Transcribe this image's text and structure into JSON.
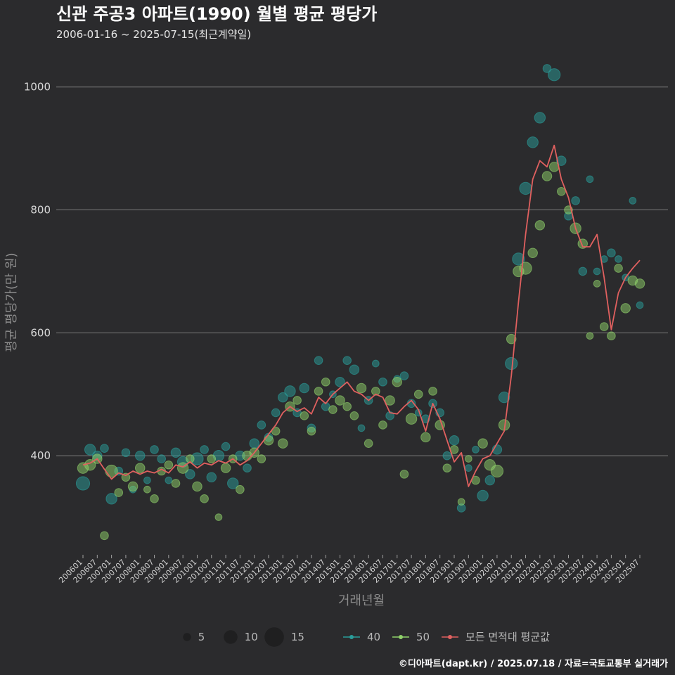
{
  "chart_data": {
    "type": "scatter",
    "title": "신관 주공3 아파트(1990) 월별 평균 평당가",
    "subtitle": "2006-01-16 ~ 2025-07-15(최근계약일)",
    "xlabel": "거래년월",
    "ylabel": "평균 평당가(만 원)",
    "caption": "©디아파트(dapt.kr) / 2025.07.18 / 자료=국토교통부 실거래가",
    "ylim": [
      240,
      1050
    ],
    "yticks": [
      400,
      600,
      800,
      1000
    ],
    "ytick_labels": [
      "400",
      "600",
      "800",
      "1000"
    ],
    "x_tick_labels": [
      "200601",
      "200607",
      "200701",
      "200707",
      "200801",
      "200807",
      "200901",
      "200907",
      "201001",
      "201007",
      "201101",
      "201107",
      "201201",
      "201207",
      "201301",
      "201307",
      "201401",
      "201407",
      "201501",
      "201507",
      "201601",
      "201607",
      "201701",
      "201707",
      "201801",
      "201807",
      "201901",
      "201907",
      "202001",
      "202007",
      "202101",
      "202107",
      "202201",
      "202207",
      "202301",
      "202307",
      "202401",
      "202407",
      "202501",
      "202507"
    ],
    "grid": "horizontal",
    "legend_position": "bottom",
    "legend": {
      "size_items": [
        {
          "label": "5",
          "value": 5
        },
        {
          "label": "10",
          "value": 10
        },
        {
          "label": "15",
          "value": 15
        }
      ],
      "color_items": [
        {
          "label": "40",
          "color": "#2a9d9a"
        },
        {
          "label": "50",
          "color": "#8fd16a"
        },
        {
          "label": "모든 면적대 평균값",
          "color": "#e0605f"
        }
      ]
    },
    "average_line": {
      "name": "모든 면적대 평균값",
      "color": "#e0605f",
      "points": [
        [
          "2006-01",
          385
        ],
        [
          "2006-04",
          388
        ],
        [
          "2006-07",
          395
        ],
        [
          "2006-10",
          378
        ],
        [
          "2007-01",
          362
        ],
        [
          "2007-04",
          372
        ],
        [
          "2007-07",
          368
        ],
        [
          "2007-10",
          375
        ],
        [
          "2008-01",
          370
        ],
        [
          "2008-04",
          375
        ],
        [
          "2008-07",
          372
        ],
        [
          "2008-10",
          378
        ],
        [
          "2009-01",
          372
        ],
        [
          "2009-04",
          385
        ],
        [
          "2009-07",
          382
        ],
        [
          "2009-10",
          390
        ],
        [
          "2010-01",
          380
        ],
        [
          "2010-04",
          388
        ],
        [
          "2010-07",
          385
        ],
        [
          "2010-10",
          392
        ],
        [
          "2011-01",
          388
        ],
        [
          "2011-04",
          395
        ],
        [
          "2011-07",
          385
        ],
        [
          "2011-10",
          392
        ],
        [
          "2012-01",
          405
        ],
        [
          "2012-04",
          420
        ],
        [
          "2012-07",
          435
        ],
        [
          "2012-10",
          450
        ],
        [
          "2013-01",
          470
        ],
        [
          "2013-04",
          480
        ],
        [
          "2013-07",
          472
        ],
        [
          "2013-10",
          478
        ],
        [
          "2014-01",
          468
        ],
        [
          "2014-04",
          495
        ],
        [
          "2014-07",
          485
        ],
        [
          "2014-10",
          500
        ],
        [
          "2015-01",
          510
        ],
        [
          "2015-04",
          520
        ],
        [
          "2015-07",
          505
        ],
        [
          "2015-10",
          500
        ],
        [
          "2016-01",
          490
        ],
        [
          "2016-04",
          500
        ],
        [
          "2016-07",
          495
        ],
        [
          "2016-10",
          470
        ],
        [
          "2017-01",
          468
        ],
        [
          "2017-04",
          480
        ],
        [
          "2017-07",
          490
        ],
        [
          "2017-10",
          475
        ],
        [
          "2018-01",
          440
        ],
        [
          "2018-04",
          485
        ],
        [
          "2018-07",
          460
        ],
        [
          "2018-10",
          425
        ],
        [
          "2019-01",
          390
        ],
        [
          "2019-04",
          405
        ],
        [
          "2019-07",
          350
        ],
        [
          "2019-10",
          375
        ],
        [
          "2020-01",
          395
        ],
        [
          "2020-04",
          400
        ],
        [
          "2020-07",
          420
        ],
        [
          "2020-10",
          440
        ],
        [
          "2021-01",
          530
        ],
        [
          "2021-04",
          650
        ],
        [
          "2021-07",
          760
        ],
        [
          "2021-10",
          850
        ],
        [
          "2022-01",
          880
        ],
        [
          "2022-04",
          870
        ],
        [
          "2022-07",
          905
        ],
        [
          "2022-10",
          850
        ],
        [
          "2023-01",
          820
        ],
        [
          "2023-04",
          770
        ],
        [
          "2023-07",
          740
        ],
        [
          "2023-10",
          740
        ],
        [
          "2024-01",
          760
        ],
        [
          "2024-04",
          690
        ],
        [
          "2024-07",
          605
        ],
        [
          "2024-10",
          665
        ],
        [
          "2025-01",
          690
        ],
        [
          "2025-04",
          705
        ],
        [
          "2025-07",
          718
        ]
      ]
    },
    "series": [
      {
        "name": "40",
        "color": "#2a9d9a",
        "points": [
          [
            "2006-01",
            355,
            8
          ],
          [
            "2006-04",
            410,
            6
          ],
          [
            "2006-07",
            400,
            5
          ],
          [
            "2006-10",
            412,
            4
          ],
          [
            "2007-01",
            330,
            6
          ],
          [
            "2007-04",
            375,
            4
          ],
          [
            "2007-07",
            405,
            4
          ],
          [
            "2007-10",
            345,
            3
          ],
          [
            "2008-01",
            400,
            5
          ],
          [
            "2008-04",
            360,
            3
          ],
          [
            "2008-07",
            410,
            4
          ],
          [
            "2008-10",
            395,
            4
          ],
          [
            "2009-01",
            360,
            3
          ],
          [
            "2009-04",
            405,
            5
          ],
          [
            "2009-07",
            390,
            6
          ],
          [
            "2009-10",
            370,
            5
          ],
          [
            "2010-01",
            395,
            7
          ],
          [
            "2010-04",
            410,
            4
          ],
          [
            "2010-07",
            365,
            5
          ],
          [
            "2010-10",
            400,
            6
          ],
          [
            "2011-01",
            415,
            4
          ],
          [
            "2011-04",
            355,
            6
          ],
          [
            "2011-07",
            400,
            5
          ],
          [
            "2011-10",
            380,
            4
          ],
          [
            "2012-01",
            420,
            5
          ],
          [
            "2012-04",
            450,
            4
          ],
          [
            "2012-07",
            430,
            4
          ],
          [
            "2012-10",
            470,
            4
          ],
          [
            "2013-01",
            495,
            5
          ],
          [
            "2013-04",
            505,
            6
          ],
          [
            "2013-07",
            470,
            4
          ],
          [
            "2013-10",
            510,
            5
          ],
          [
            "2014-01",
            445,
            4
          ],
          [
            "2014-04",
            555,
            4
          ],
          [
            "2014-07",
            480,
            4
          ],
          [
            "2014-10",
            500,
            3
          ],
          [
            "2015-01",
            520,
            5
          ],
          [
            "2015-04",
            555,
            4
          ],
          [
            "2015-07",
            540,
            5
          ],
          [
            "2015-10",
            445,
            3
          ],
          [
            "2016-01",
            490,
            4
          ],
          [
            "2016-04",
            550,
            3
          ],
          [
            "2016-07",
            520,
            4
          ],
          [
            "2016-10",
            465,
            4
          ],
          [
            "2017-01",
            525,
            3
          ],
          [
            "2017-04",
            530,
            4
          ],
          [
            "2017-07",
            485,
            4
          ],
          [
            "2017-10",
            470,
            3
          ],
          [
            "2018-01",
            460,
            4
          ],
          [
            "2018-04",
            485,
            4
          ],
          [
            "2018-07",
            470,
            4
          ],
          [
            "2018-10",
            400,
            4
          ],
          [
            "2019-01",
            425,
            5
          ],
          [
            "2019-04",
            315,
            4
          ],
          [
            "2019-07",
            380,
            3
          ],
          [
            "2019-10",
            410,
            3
          ],
          [
            "2020-01",
            335,
            6
          ],
          [
            "2020-04",
            360,
            5
          ],
          [
            "2020-07",
            410,
            5
          ],
          [
            "2020-10",
            495,
            6
          ],
          [
            "2021-01",
            550,
            7
          ],
          [
            "2021-04",
            720,
            7
          ],
          [
            "2021-07",
            835,
            7
          ],
          [
            "2021-10",
            910,
            6
          ],
          [
            "2022-01",
            950,
            6
          ],
          [
            "2022-04",
            1030,
            4
          ],
          [
            "2022-07",
            1020,
            7
          ],
          [
            "2022-10",
            880,
            5
          ],
          [
            "2023-01",
            790,
            4
          ],
          [
            "2023-04",
            815,
            4
          ],
          [
            "2023-07",
            700,
            4
          ],
          [
            "2023-10",
            850,
            3
          ],
          [
            "2024-01",
            700,
            3
          ],
          [
            "2024-04",
            720,
            3
          ],
          [
            "2024-07",
            730,
            4
          ],
          [
            "2024-10",
            720,
            3
          ],
          [
            "2025-01",
            690,
            3
          ],
          [
            "2025-04",
            815,
            3
          ],
          [
            "2025-07",
            645,
            3
          ]
        ]
      },
      {
        "name": "50",
        "color": "#8fd16a",
        "points": [
          [
            "2006-01",
            380,
            6
          ],
          [
            "2006-04",
            385,
            6
          ],
          [
            "2006-07",
            395,
            5
          ],
          [
            "2006-10",
            270,
            4
          ],
          [
            "2007-01",
            375,
            7
          ],
          [
            "2007-04",
            340,
            4
          ],
          [
            "2007-07",
            365,
            4
          ],
          [
            "2007-10",
            350,
            5
          ],
          [
            "2008-01",
            380,
            5
          ],
          [
            "2008-04",
            345,
            3
          ],
          [
            "2008-07",
            330,
            4
          ],
          [
            "2008-10",
            375,
            4
          ],
          [
            "2009-01",
            385,
            4
          ],
          [
            "2009-04",
            355,
            4
          ],
          [
            "2009-07",
            380,
            6
          ],
          [
            "2009-10",
            395,
            4
          ],
          [
            "2010-01",
            350,
            5
          ],
          [
            "2010-04",
            330,
            4
          ],
          [
            "2010-07",
            395,
            4
          ],
          [
            "2010-10",
            300,
            3
          ],
          [
            "2011-01",
            380,
            5
          ],
          [
            "2011-04",
            395,
            4
          ],
          [
            "2011-07",
            345,
            4
          ],
          [
            "2011-10",
            400,
            5
          ],
          [
            "2012-01",
            405,
            5
          ],
          [
            "2012-04",
            395,
            4
          ],
          [
            "2012-07",
            425,
            5
          ],
          [
            "2012-10",
            440,
            4
          ],
          [
            "2013-01",
            420,
            5
          ],
          [
            "2013-04",
            480,
            5
          ],
          [
            "2013-07",
            490,
            4
          ],
          [
            "2013-10",
            465,
            4
          ],
          [
            "2014-01",
            440,
            4
          ],
          [
            "2014-04",
            505,
            4
          ],
          [
            "2014-07",
            520,
            4
          ],
          [
            "2014-10",
            475,
            4
          ],
          [
            "2015-01",
            490,
            5
          ],
          [
            "2015-04",
            480,
            4
          ],
          [
            "2015-07",
            465,
            4
          ],
          [
            "2015-10",
            510,
            5
          ],
          [
            "2016-01",
            420,
            4
          ],
          [
            "2016-04",
            505,
            4
          ],
          [
            "2016-07",
            450,
            4
          ],
          [
            "2016-10",
            490,
            5
          ],
          [
            "2017-01",
            520,
            5
          ],
          [
            "2017-04",
            370,
            4
          ],
          [
            "2017-07",
            460,
            6
          ],
          [
            "2017-10",
            500,
            4
          ],
          [
            "2018-01",
            430,
            5
          ],
          [
            "2018-04",
            505,
            4
          ],
          [
            "2018-07",
            450,
            5
          ],
          [
            "2018-10",
            380,
            4
          ],
          [
            "2019-01",
            410,
            4
          ],
          [
            "2019-04",
            325,
            3
          ],
          [
            "2019-07",
            395,
            3
          ],
          [
            "2019-10",
            360,
            4
          ],
          [
            "2020-01",
            420,
            5
          ],
          [
            "2020-04",
            385,
            6
          ],
          [
            "2020-07",
            375,
            7
          ],
          [
            "2020-10",
            450,
            6
          ],
          [
            "2021-01",
            590,
            5
          ],
          [
            "2021-04",
            700,
            6
          ],
          [
            "2021-07",
            705,
            7
          ],
          [
            "2021-10",
            730,
            5
          ],
          [
            "2022-01",
            775,
            5
          ],
          [
            "2022-04",
            855,
            5
          ],
          [
            "2022-07",
            870,
            5
          ],
          [
            "2022-10",
            830,
            4
          ],
          [
            "2023-01",
            800,
            4
          ],
          [
            "2023-04",
            770,
            6
          ],
          [
            "2023-07",
            745,
            5
          ],
          [
            "2023-10",
            595,
            3
          ],
          [
            "2024-01",
            680,
            3
          ],
          [
            "2024-04",
            610,
            4
          ],
          [
            "2024-07",
            595,
            4
          ],
          [
            "2024-10",
            705,
            4
          ],
          [
            "2025-01",
            640,
            5
          ],
          [
            "2025-04",
            685,
            5
          ],
          [
            "2025-07",
            680,
            5
          ]
        ]
      }
    ]
  }
}
